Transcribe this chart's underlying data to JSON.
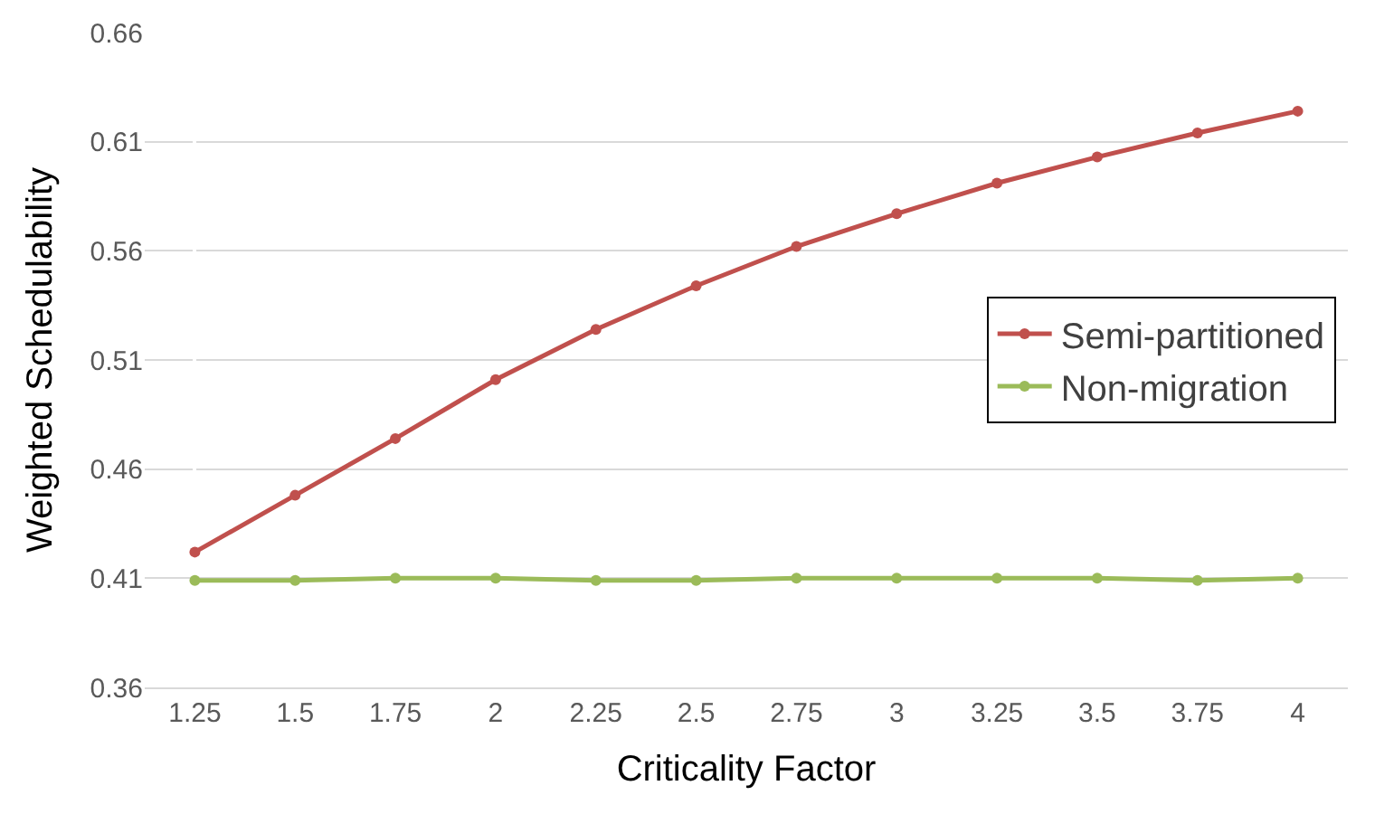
{
  "chart_data": {
    "type": "line",
    "xlabel": "Criticality Factor",
    "ylabel": "Weighted Schedulability",
    "categories": [
      "1.25",
      "1.5",
      "1.75",
      "2",
      "2.25",
      "2.5",
      "2.75",
      "3",
      "3.25",
      "3.5",
      "3.75",
      "4"
    ],
    "series": [
      {
        "name": "Semi-partitioned",
        "color": "#c0504d",
        "values": [
          0.422,
          0.448,
          0.474,
          0.501,
          0.524,
          0.544,
          0.562,
          0.577,
          0.591,
          0.603,
          0.614,
          0.624
        ]
      },
      {
        "name": "Non-migration",
        "color": "#9bbb59",
        "values": [
          0.409,
          0.409,
          0.41,
          0.41,
          0.409,
          0.409,
          0.41,
          0.41,
          0.41,
          0.41,
          0.409,
          0.41
        ]
      }
    ],
    "ylim": [
      0.36,
      0.66
    ],
    "yticks": [
      0.36,
      0.41,
      0.46,
      0.51,
      0.56,
      0.61,
      0.66
    ],
    "grid": "y",
    "legend": "right",
    "marker": "circle",
    "line_style": "solid"
  }
}
